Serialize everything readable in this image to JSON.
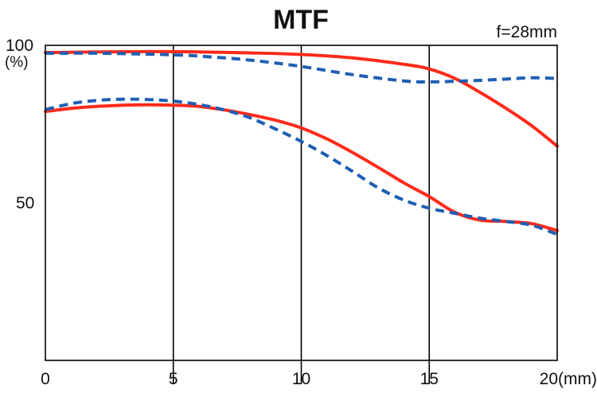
{
  "chart_data": {
    "type": "line",
    "title": "MTF",
    "annotation": "f=28mm",
    "y_label": "(%)",
    "x_unit": "(mm)",
    "xlim": [
      0,
      20
    ],
    "ylim": [
      0,
      100
    ],
    "x_ticks": [
      {
        "value": 0,
        "label": "0"
      },
      {
        "value": 5,
        "label": "5"
      },
      {
        "value": 10,
        "label": "10"
      },
      {
        "value": 15,
        "label": "15"
      },
      {
        "value": 20,
        "label": "20"
      }
    ],
    "y_ticks": [
      {
        "value": 100,
        "label": "100"
      },
      {
        "value": 50,
        "label": "50"
      }
    ],
    "vertical_gridlines_at": [
      5,
      10,
      15
    ],
    "series": [
      {
        "color": "#ff2a1a",
        "dash": "solid",
        "x": [
          0,
          2,
          4,
          5,
          6,
          8,
          10,
          12,
          14,
          15,
          16,
          17,
          18,
          19,
          20
        ],
        "y": [
          97.7,
          97.9,
          98.0,
          98.0,
          97.9,
          97.6,
          97.1,
          96.0,
          94.0,
          92.5,
          89.5,
          85.0,
          80.0,
          74.5,
          68.0
        ]
      },
      {
        "color": "#1f5fb4",
        "dash": "dashed",
        "x": [
          0,
          2,
          4,
          5,
          6,
          8,
          10,
          12,
          14,
          15,
          16,
          17,
          18,
          19,
          20
        ],
        "y": [
          97.5,
          97.5,
          97.2,
          97.0,
          96.6,
          95.3,
          93.3,
          90.7,
          88.7,
          88.4,
          88.6,
          88.9,
          89.3,
          89.7,
          89.5
        ]
      },
      {
        "color": "#ff2a1a",
        "dash": "solid",
        "x": [
          0,
          1,
          2,
          3,
          4,
          5,
          6,
          7,
          8,
          9,
          10,
          11,
          12,
          13,
          14,
          15,
          16,
          17,
          18,
          19,
          20
        ],
        "y": [
          79.0,
          80.0,
          80.6,
          81.0,
          81.1,
          81.0,
          80.6,
          79.5,
          78.0,
          76.2,
          73.8,
          70.3,
          66.0,
          61.3,
          56.4,
          52.0,
          47.0,
          44.5,
          44.1,
          43.4,
          41.2
        ]
      },
      {
        "color": "#1f5fb4",
        "dash": "dashed",
        "x": [
          0,
          1,
          2,
          3,
          4,
          5,
          6,
          7,
          8,
          9,
          10,
          11,
          12,
          13,
          14,
          15,
          16,
          17,
          18,
          19,
          20
        ],
        "y": [
          79.6,
          81.5,
          82.5,
          82.9,
          82.8,
          82.3,
          81.2,
          79.5,
          77.0,
          73.4,
          69.5,
          65.0,
          60.0,
          54.8,
          50.9,
          48.3,
          46.7,
          45.1,
          44.1,
          42.9,
          40.0
        ]
      }
    ]
  }
}
